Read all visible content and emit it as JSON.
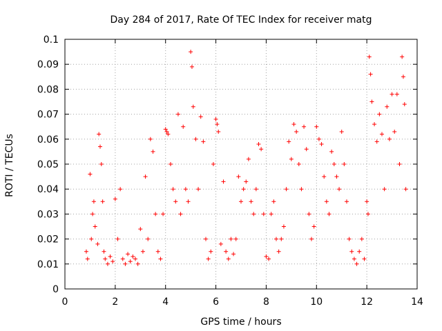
{
  "chart_data": {
    "type": "scatter",
    "title": "Day 284 of 2017, Rate Of TEC Index for receiver matg",
    "xlabel": "GPS time / hours",
    "ylabel": "ROTI / TECUs",
    "xlim": [
      0,
      14
    ],
    "ylim": [
      0,
      0.1
    ],
    "xticks": [
      0,
      2,
      4,
      6,
      8,
      10,
      12,
      14
    ],
    "xtick_labels": [
      "0",
      "2",
      "4",
      "6",
      "8",
      "10",
      "12",
      "14"
    ],
    "yticks": [
      0,
      0.01,
      0.02,
      0.03,
      0.04,
      0.05,
      0.06,
      0.07,
      0.08,
      0.09,
      0.1
    ],
    "ytick_labels": [
      "0",
      "0.01",
      "0.02",
      "0.03",
      "0.04",
      "0.05",
      "0.06",
      "0.07",
      "0.08",
      "0.09",
      "0.1"
    ],
    "grid": true,
    "marker": "+",
    "color": "#ff0000",
    "series": [
      {
        "name": "ROTI",
        "x": [
          0.85,
          0.9,
          1.0,
          1.05,
          1.1,
          1.15,
          1.2,
          1.3,
          1.35,
          1.4,
          1.45,
          1.5,
          1.55,
          1.6,
          1.7,
          1.8,
          1.9,
          2.0,
          2.1,
          2.2,
          2.3,
          2.4,
          2.5,
          2.6,
          2.7,
          2.8,
          2.9,
          3.0,
          3.1,
          3.2,
          3.3,
          3.4,
          3.5,
          3.6,
          3.7,
          3.8,
          3.9,
          4.0,
          4.05,
          4.1,
          4.2,
          4.3,
          4.4,
          4.5,
          4.6,
          4.7,
          4.8,
          4.9,
          5.0,
          5.05,
          5.1,
          5.2,
          5.3,
          5.4,
          5.5,
          5.6,
          5.7,
          5.8,
          5.9,
          6.0,
          6.05,
          6.1,
          6.2,
          6.3,
          6.4,
          6.5,
          6.6,
          6.7,
          6.8,
          6.9,
          7.0,
          7.1,
          7.2,
          7.3,
          7.4,
          7.5,
          7.6,
          7.7,
          7.8,
          7.9,
          8.0,
          8.1,
          8.2,
          8.3,
          8.4,
          8.5,
          8.6,
          8.7,
          8.8,
          8.9,
          9.0,
          9.1,
          9.2,
          9.3,
          9.4,
          9.5,
          9.6,
          9.7,
          9.8,
          9.9,
          10.0,
          10.1,
          10.2,
          10.3,
          10.4,
          10.5,
          10.6,
          10.7,
          10.8,
          10.9,
          11.0,
          11.1,
          11.2,
          11.3,
          11.4,
          11.5,
          11.6,
          11.7,
          11.8,
          11.9,
          12.0,
          12.05,
          12.1,
          12.15,
          12.2,
          12.3,
          12.4,
          12.5,
          12.6,
          12.7,
          12.8,
          12.9,
          13.0,
          13.1,
          13.2,
          13.3,
          13.4,
          13.45,
          13.5,
          13.55
        ],
        "y": [
          0.015,
          0.012,
          0.046,
          0.02,
          0.03,
          0.035,
          0.025,
          0.018,
          0.062,
          0.057,
          0.05,
          0.035,
          0.015,
          0.012,
          0.01,
          0.013,
          0.011,
          0.036,
          0.02,
          0.04,
          0.012,
          0.01,
          0.014,
          0.011,
          0.013,
          0.012,
          0.01,
          0.024,
          0.015,
          0.045,
          0.02,
          0.06,
          0.055,
          0.03,
          0.015,
          0.012,
          0.03,
          0.064,
          0.063,
          0.062,
          0.05,
          0.04,
          0.035,
          0.07,
          0.03,
          0.065,
          0.04,
          0.035,
          0.095,
          0.089,
          0.073,
          0.06,
          0.04,
          0.069,
          0.059,
          0.02,
          0.012,
          0.015,
          0.05,
          0.068,
          0.066,
          0.063,
          0.018,
          0.043,
          0.015,
          0.012,
          0.02,
          0.014,
          0.02,
          0.045,
          0.035,
          0.04,
          0.043,
          0.052,
          0.035,
          0.03,
          0.04,
          0.058,
          0.056,
          0.03,
          0.013,
          0.012,
          0.03,
          0.035,
          0.02,
          0.015,
          0.02,
          0.025,
          0.04,
          0.059,
          0.052,
          0.066,
          0.063,
          0.05,
          0.04,
          0.065,
          0.056,
          0.03,
          0.02,
          0.025,
          0.065,
          0.06,
          0.058,
          0.045,
          0.035,
          0.03,
          0.055,
          0.05,
          0.045,
          0.04,
          0.063,
          0.05,
          0.035,
          0.02,
          0.015,
          0.012,
          0.01,
          0.015,
          0.02,
          0.012,
          0.035,
          0.03,
          0.093,
          0.086,
          0.075,
          0.066,
          0.059,
          0.07,
          0.062,
          0.04,
          0.073,
          0.06,
          0.078,
          0.063,
          0.078,
          0.05,
          0.093,
          0.085,
          0.074,
          0.04
        ]
      }
    ]
  }
}
